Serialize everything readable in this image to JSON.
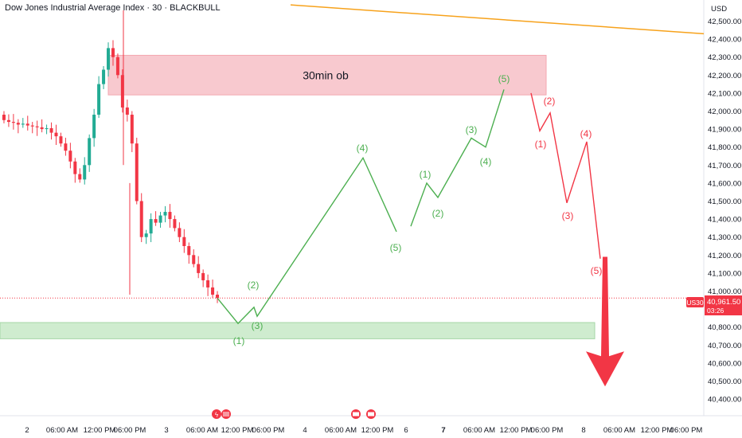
{
  "header": {
    "title": "Dow Jones Industrial Average Index · 30 · BLACKBULL"
  },
  "axis": {
    "currency": "USD"
  },
  "price_tag": {
    "symbol": "US30",
    "price": "40,961.50",
    "countdown": "03:26"
  },
  "zones": {
    "order_block_label": "30min ob"
  },
  "colors": {
    "bull": "#22ab94",
    "bear": "#f23645",
    "wave_green": "#4caf50",
    "wave_red": "#f23645",
    "trendline": "#f7a21b",
    "ob_fill": "#f8c9cf",
    "demand_fill": "#cfeccf",
    "tag": "#f23645"
  },
  "chart_data": {
    "type": "candlestick",
    "title": "Dow Jones Industrial Average Index · 30 · BLACKBULL",
    "ylim": [
      40350,
      42560
    ],
    "y_ticks": [
      40400,
      40500,
      40600,
      40700,
      40800,
      40900,
      41000,
      41100,
      41200,
      41300,
      41400,
      41500,
      41600,
      41700,
      41800,
      41900,
      42000,
      42100,
      42200,
      42300,
      42400,
      42500
    ],
    "y_tick_labels": [
      "40,400.00",
      "40,500.00",
      "40,600.00",
      "40,700.00",
      "40,800.00",
      "40,900.00",
      "41,000.00",
      "41,100.00",
      "41,200.00",
      "41,300.00",
      "41,400.00",
      "41,500.00",
      "41,600.00",
      "41,700.00",
      "41,800.00",
      "41,900.00",
      "42,000.00",
      "42,100.00",
      "42,200.00",
      "42,300.00",
      "42,400.00",
      "42,500.00"
    ],
    "x_tick_labels": [
      "2",
      "06:00 AM",
      "12:00 PM",
      "06:00 PM",
      "3",
      "06:00 AM",
      "12:00 PM",
      "06:00 PM",
      "4",
      "06:00 AM",
      "12:00 PM",
      "6",
      "7",
      "06:00 AM",
      "12:00 PM",
      "06:00 PM",
      "8",
      "06:00 AM",
      "12:00 PM",
      "06:00 PM"
    ],
    "last_price": 40961.5,
    "candles_close": [
      41950,
      41940,
      41935,
      41925,
      41930,
      41920,
      41915,
      41910,
      41900,
      41905,
      41880,
      41860,
      41820,
      41780,
      41720,
      41650,
      41620,
      41700,
      41850,
      41980,
      42150,
      42230,
      42350,
      42300,
      42200,
      42020,
      41980,
      41820,
      41500,
      41300,
      41320,
      41400,
      41380,
      41420,
      41440,
      41400,
      41350,
      41300,
      41250,
      41200,
      41150,
      41100,
      41060,
      41020,
      40980,
      40961
    ],
    "order_block": {
      "top": 42310,
      "bottom": 42090,
      "label": "30min ob"
    },
    "demand_zone": {
      "top": 40825,
      "bottom": 40735
    },
    "trendline": {
      "start": 42590,
      "end": 42430
    },
    "green_wave": {
      "points": [
        40961,
        40820,
        40910,
        40860,
        41740,
        41330,
        41360,
        41600,
        41520,
        41850,
        41800,
        42120
      ],
      "labels": [
        "(1)",
        "(2)",
        "(3)",
        "(4)",
        "(5)",
        "(1)",
        "(2)",
        "(3)",
        "(4)",
        "(5)"
      ]
    },
    "red_wave": {
      "points": [
        42100,
        41890,
        41990,
        41490,
        41830,
        41180
      ],
      "labels": [
        "(1)",
        "(2)",
        "(3)",
        "(4)",
        "(5)"
      ],
      "target": 40470
    }
  }
}
